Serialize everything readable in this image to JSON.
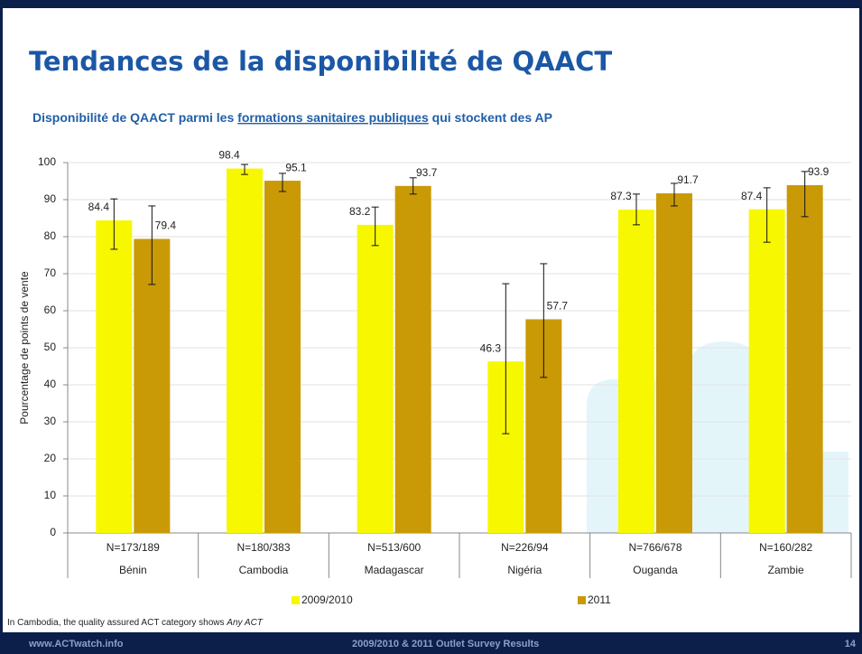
{
  "header": {
    "title": "Tendances de la disponibilité de QAACT"
  },
  "chart_data": {
    "type": "bar",
    "subtitle_parts": [
      "Disponibilité de QAACT parmi les",
      "formations sanitaires publiques",
      "qui stockent des AP"
    ],
    "y_label": "Pourcentage de points de vente",
    "categories": [
      "Bénin",
      "Cambodia",
      "Madagascar",
      "Nigéria",
      "Ouganda",
      "Zambie"
    ],
    "sample_sizes": [
      "N=173/189",
      "N=180/383",
      "N=513/600",
      "N=226/94",
      "N=766/678",
      "N=160/282"
    ],
    "series": [
      {
        "name": "2009/2010",
        "color": "#f7f700",
        "values": [
          84.4,
          98.4,
          83.2,
          46.3,
          87.3,
          87.4
        ],
        "ci_low": [
          76.6,
          96.8,
          77.6,
          26.8,
          83.2,
          78.5
        ],
        "ci_high": [
          90.2,
          99.5,
          88.0,
          67.3,
          91.5,
          93.2
        ]
      },
      {
        "name": "2011",
        "color": "#c99a06",
        "values": [
          79.4,
          95.1,
          93.7,
          57.7,
          91.7,
          93.9
        ],
        "ci_low": [
          67.1,
          92.2,
          91.5,
          42.0,
          88.3,
          85.4
        ],
        "ci_high": [
          88.3,
          97.1,
          95.9,
          72.7,
          94.4,
          97.6
        ]
      }
    ],
    "ylim": [
      0,
      100
    ],
    "yticks": [
      0,
      10,
      20,
      30,
      40,
      50,
      60,
      70,
      80,
      90,
      100
    ],
    "grid": true
  },
  "footnote": {
    "text": "In Cambodia, the quality assured ACT category shows",
    "emphasis": "Any ACT"
  },
  "footer": {
    "site": "www.ACTwatch.info",
    "survey": "2009/2010 & 2011 Outlet Survey Results",
    "page": 14
  }
}
